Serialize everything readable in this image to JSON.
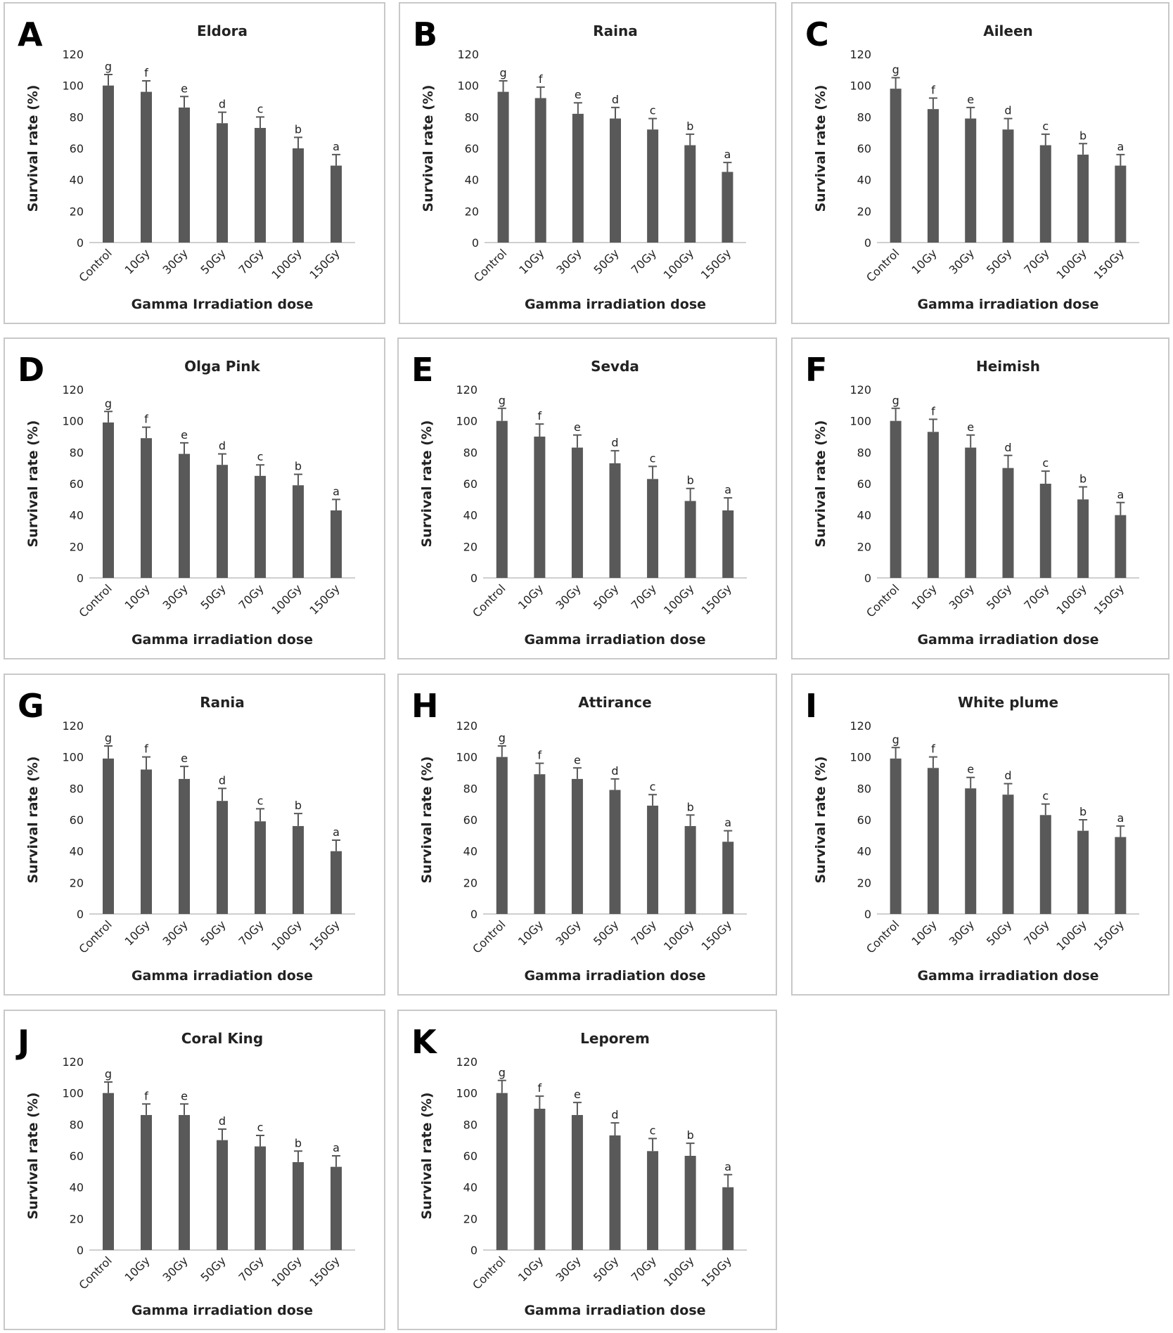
{
  "chart_data": [
    {
      "type": "bar",
      "letter": "A",
      "title": "Eldora",
      "xlabel": "Gamma Irradiation dose",
      "ylabel": "Survival rate (%)",
      "ylim": [
        0,
        120
      ],
      "yticks": [
        0,
        20,
        40,
        60,
        80,
        100,
        120
      ],
      "categories": [
        "Control",
        "10Gy",
        "30Gy",
        "50Gy",
        "70Gy",
        "100Gy",
        "150Gy"
      ],
      "values": [
        100,
        96,
        86,
        76,
        73,
        60,
        49
      ],
      "errors": [
        7,
        7,
        7,
        7,
        7,
        7,
        7
      ],
      "labels": [
        "g",
        "f",
        "e",
        "d",
        "c",
        "b",
        "a"
      ]
    },
    {
      "type": "bar",
      "letter": "B",
      "title": "Raina",
      "xlabel": "Gamma irradiation dose",
      "ylabel": "Survival rate (%)",
      "ylim": [
        0,
        120
      ],
      "yticks": [
        0,
        20,
        40,
        60,
        80,
        100,
        120
      ],
      "categories": [
        "Control",
        "10Gy",
        "30Gy",
        "50Gy",
        "70Gy",
        "100Gy",
        "150Gy"
      ],
      "values": [
        96,
        92,
        82,
        79,
        72,
        62,
        45
      ],
      "errors": [
        7,
        7,
        7,
        7,
        7,
        7,
        6
      ],
      "labels": [
        "g",
        "f",
        "e",
        "d",
        "c",
        "b",
        "a"
      ]
    },
    {
      "type": "bar",
      "letter": "C",
      "title": "Aileen",
      "xlabel": "Gamma irradiation dose",
      "ylabel": "Survival rate (%)",
      "ylim": [
        0,
        120
      ],
      "yticks": [
        0,
        20,
        40,
        60,
        80,
        100,
        120
      ],
      "categories": [
        "Control",
        "10Gy",
        "30Gy",
        "50Gy",
        "70Gy",
        "100Gy",
        "150Gy"
      ],
      "values": [
        98,
        85,
        79,
        72,
        62,
        56,
        49
      ],
      "errors": [
        7,
        7,
        7,
        7,
        7,
        7,
        7
      ],
      "labels": [
        "g",
        "f",
        "e",
        "d",
        "c",
        "b",
        "a"
      ]
    },
    {
      "type": "bar",
      "letter": "D",
      "title": "Olga Pink",
      "xlabel": "Gamma irradiation dose",
      "ylabel": "Survival rate (%)",
      "ylim": [
        0,
        120
      ],
      "yticks": [
        0,
        20,
        40,
        60,
        80,
        100,
        120
      ],
      "categories": [
        "Control",
        "10Gy",
        "30Gy",
        "50Gy",
        "70Gy",
        "100Gy",
        "150Gy"
      ],
      "values": [
        99,
        89,
        79,
        72,
        65,
        59,
        43
      ],
      "errors": [
        7,
        7,
        7,
        7,
        7,
        7,
        7
      ],
      "labels": [
        "g",
        "f",
        "e",
        "d",
        "c",
        "b",
        "a"
      ]
    },
    {
      "type": "bar",
      "letter": "E",
      "title": "Sevda",
      "xlabel": "Gamma irradiation dose",
      "ylabel": "Survival rate (%)",
      "ylim": [
        0,
        120
      ],
      "yticks": [
        0,
        20,
        40,
        60,
        80,
        100,
        120
      ],
      "categories": [
        "Control",
        "10Gy",
        "30Gy",
        "50Gy",
        "70Gy",
        "100Gy",
        "150Gy"
      ],
      "values": [
        100,
        90,
        83,
        73,
        63,
        49,
        43
      ],
      "errors": [
        8,
        8,
        8,
        8,
        8,
        8,
        8
      ],
      "labels": [
        "g",
        "f",
        "e",
        "d",
        "c",
        "b",
        "a"
      ]
    },
    {
      "type": "bar",
      "letter": "F",
      "title": "Heimish",
      "xlabel": "Gamma irradiation dose",
      "ylabel": "Survival rate (%)",
      "ylim": [
        0,
        120
      ],
      "yticks": [
        0,
        20,
        40,
        60,
        80,
        100,
        120
      ],
      "categories": [
        "Control",
        "10Gy",
        "30Gy",
        "50Gy",
        "70Gy",
        "100Gy",
        "150Gy"
      ],
      "values": [
        100,
        93,
        83,
        70,
        60,
        50,
        40
      ],
      "errors": [
        8,
        8,
        8,
        8,
        8,
        8,
        8
      ],
      "labels": [
        "g",
        "f",
        "e",
        "d",
        "c",
        "b",
        "a"
      ]
    },
    {
      "type": "bar",
      "letter": "G",
      "title": "Rania",
      "xlabel": "Gamma irradiation dose",
      "ylabel": "Survival rate (%)",
      "ylim": [
        0,
        120
      ],
      "yticks": [
        0,
        20,
        40,
        60,
        80,
        100,
        120
      ],
      "categories": [
        "Control",
        "10Gy",
        "30Gy",
        "50Gy",
        "70Gy",
        "100Gy",
        "150Gy"
      ],
      "values": [
        99,
        92,
        86,
        72,
        59,
        56,
        40
      ],
      "errors": [
        8,
        8,
        8,
        8,
        8,
        8,
        7
      ],
      "labels": [
        "g",
        "f",
        "e",
        "d",
        "c",
        "b",
        "a"
      ]
    },
    {
      "type": "bar",
      "letter": "H",
      "title": "Attirance",
      "xlabel": "Gamma irradiation dose",
      "ylabel": "Survival rate (%)",
      "ylim": [
        0,
        120
      ],
      "yticks": [
        0,
        20,
        40,
        60,
        80,
        100,
        120
      ],
      "categories": [
        "Control",
        "10Gy",
        "30Gy",
        "50Gy",
        "70Gy",
        "100Gy",
        "150Gy"
      ],
      "values": [
        100,
        89,
        86,
        79,
        69,
        56,
        46
      ],
      "errors": [
        7,
        7,
        7,
        7,
        7,
        7,
        7
      ],
      "labels": [
        "g",
        "f",
        "e",
        "d",
        "c",
        "b",
        "a"
      ]
    },
    {
      "type": "bar",
      "letter": "I",
      "title": "White plume",
      "xlabel": "Gamma irradiation dose",
      "ylabel": "Survival rate (%)",
      "ylim": [
        0,
        120
      ],
      "yticks": [
        0,
        20,
        40,
        60,
        80,
        100,
        120
      ],
      "categories": [
        "Control",
        "10Gy",
        "30Gy",
        "50Gy",
        "70Gy",
        "100Gy",
        "150Gy"
      ],
      "values": [
        99,
        93,
        80,
        76,
        63,
        53,
        49
      ],
      "errors": [
        7,
        7,
        7,
        7,
        7,
        7,
        7
      ],
      "labels": [
        "g",
        "f",
        "e",
        "d",
        "c",
        "b",
        "a"
      ]
    },
    {
      "type": "bar",
      "letter": "J",
      "title": "Coral King",
      "xlabel": "Gamma irradiation dose",
      "ylabel": "Survival rate (%)",
      "ylim": [
        0,
        120
      ],
      "yticks": [
        0,
        20,
        40,
        60,
        80,
        100,
        120
      ],
      "categories": [
        "Control",
        "10Gy",
        "30Gy",
        "50Gy",
        "70Gy",
        "100Gy",
        "150Gy"
      ],
      "values": [
        100,
        86,
        86,
        70,
        66,
        56,
        53
      ],
      "errors": [
        7,
        7,
        7,
        7,
        7,
        7,
        7
      ],
      "labels": [
        "g",
        "f",
        "e",
        "d",
        "c",
        "b",
        "a"
      ]
    },
    {
      "type": "bar",
      "letter": "K",
      "title": "Leporem",
      "xlabel": "Gamma irradiation dose",
      "ylabel": "Survival rate (%)",
      "ylim": [
        0,
        120
      ],
      "yticks": [
        0,
        20,
        40,
        60,
        80,
        100,
        120
      ],
      "categories": [
        "Control",
        "10Gy",
        "30Gy",
        "50Gy",
        "70Gy",
        "100Gy",
        "150Gy"
      ],
      "values": [
        100,
        90,
        86,
        73,
        63,
        60,
        40
      ],
      "errors": [
        8,
        8,
        8,
        8,
        8,
        8,
        8
      ],
      "labels": [
        "g",
        "f",
        "e",
        "d",
        "c",
        "b",
        "a"
      ]
    }
  ]
}
